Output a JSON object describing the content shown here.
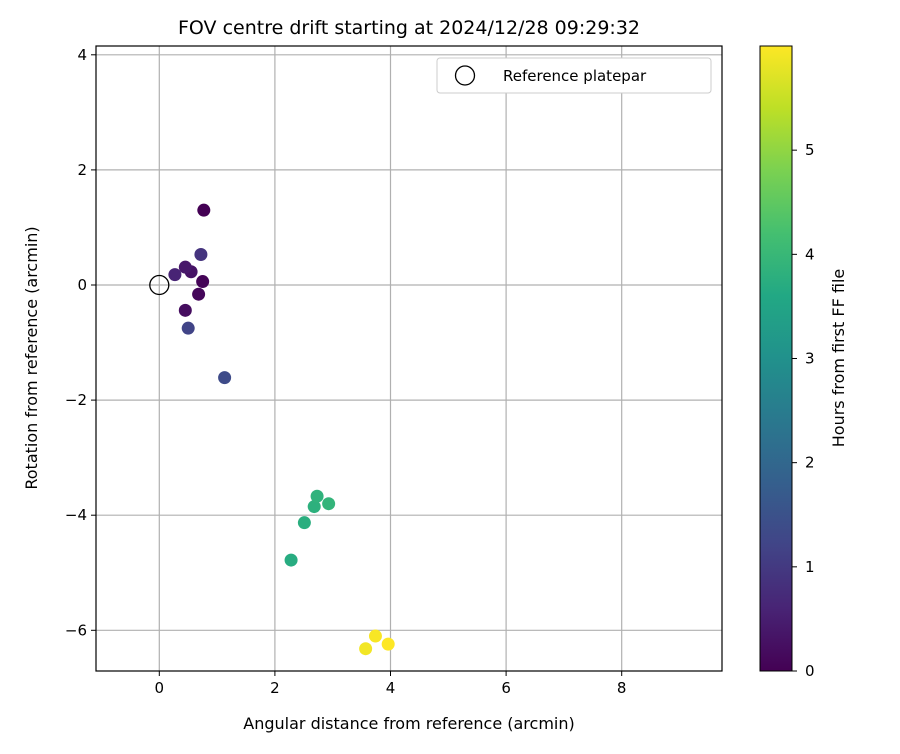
{
  "chart_data": {
    "type": "scatter",
    "title": "FOV centre drift starting at 2024/12/28 09:29:32",
    "xlabel": "Angular distance from reference (arcmin)",
    "ylabel": "Rotation from reference (arcmin)",
    "xlim": [
      -1.1,
      9.7
    ],
    "ylim": [
      -6.7,
      4.15
    ],
    "xticks": [
      0,
      2,
      4,
      6,
      8
    ],
    "xtick_labels": [
      "0",
      "2",
      "4",
      "6",
      "8"
    ],
    "yticks": [
      -6,
      -4,
      -2,
      0,
      2,
      4
    ],
    "ytick_labels": [
      "−6",
      "−4",
      "−2",
      "0",
      "2",
      "4"
    ],
    "grid": true,
    "legend": {
      "placement": "top-right",
      "entries": [
        {
          "label": "Reference platepar",
          "marker": "open-circle"
        }
      ]
    },
    "reference_point": {
      "x": 0,
      "y": 0
    },
    "colorbar": {
      "label": "Hours from first FF file",
      "colormap": "viridis",
      "range": [
        0,
        6.0
      ],
      "ticks": [
        0,
        1,
        2,
        3,
        4,
        5
      ],
      "tick_labels": [
        "0",
        "1",
        "2",
        "3",
        "4",
        "5"
      ]
    },
    "points": [
      {
        "x": 0.77,
        "y": 1.3,
        "hours": 0.0
      },
      {
        "x": 0.75,
        "y": 0.06,
        "hours": 0.05
      },
      {
        "x": 0.68,
        "y": -0.16,
        "hours": 0.1
      },
      {
        "x": 0.45,
        "y": -0.44,
        "hours": 0.2
      },
      {
        "x": 0.55,
        "y": 0.23,
        "hours": 0.3
      },
      {
        "x": 0.45,
        "y": 0.31,
        "hours": 0.4
      },
      {
        "x": 0.27,
        "y": 0.18,
        "hours": 0.6
      },
      {
        "x": 0.72,
        "y": 0.53,
        "hours": 0.9
      },
      {
        "x": 0.5,
        "y": -0.75,
        "hours": 1.2
      },
      {
        "x": 1.13,
        "y": -1.61,
        "hours": 1.35
      },
      {
        "x": 2.28,
        "y": -4.78,
        "hours": 3.7
      },
      {
        "x": 2.51,
        "y": -4.13,
        "hours": 3.75
      },
      {
        "x": 2.68,
        "y": -3.85,
        "hours": 3.8
      },
      {
        "x": 2.73,
        "y": -3.67,
        "hours": 3.85
      },
      {
        "x": 2.93,
        "y": -3.8,
        "hours": 3.9
      },
      {
        "x": 3.57,
        "y": -6.32,
        "hours": 5.9
      },
      {
        "x": 3.74,
        "y": -6.1,
        "hours": 5.95
      },
      {
        "x": 3.96,
        "y": -6.24,
        "hours": 6.0
      }
    ]
  }
}
